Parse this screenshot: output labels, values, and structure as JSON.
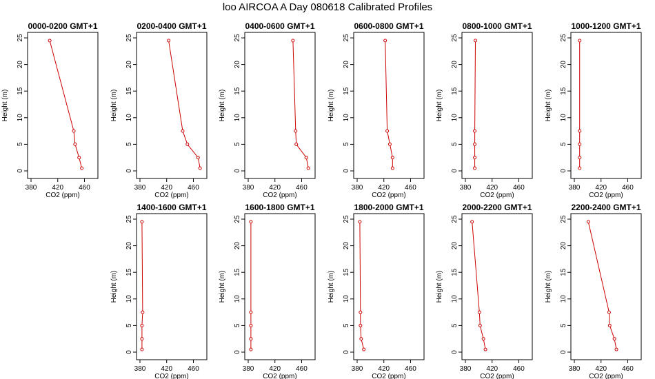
{
  "title": "loo AIRCOA A  Day 080618  Calibrated Profiles",
  "series_color": "#cc0000",
  "chart_data": [
    {
      "type": "line",
      "title": "0000-0200 GMT+1",
      "xlabel": "CO2 (ppm)",
      "ylabel": "Height (m)",
      "xlim": [
        380,
        475
      ],
      "ylim": [
        0,
        25
      ],
      "xticks": [
        380,
        420,
        460
      ],
      "yticks": [
        0,
        5,
        10,
        15,
        20,
        25
      ],
      "x": [
        456,
        452,
        446,
        444,
        408
      ],
      "y": [
        0.5,
        2.5,
        5,
        7.5,
        24.5
      ]
    },
    {
      "type": "line",
      "title": "0200-0400 GMT+1",
      "xlabel": "CO2 (ppm)",
      "ylabel": "Height (m)",
      "xlim": [
        380,
        475
      ],
      "ylim": [
        0,
        25
      ],
      "xticks": [
        380,
        420,
        460
      ],
      "yticks": [
        0,
        5,
        10,
        15,
        20,
        25
      ],
      "x": [
        470,
        467,
        451,
        444,
        423
      ],
      "y": [
        0.5,
        2.5,
        5,
        7.5,
        24.5
      ]
    },
    {
      "type": "line",
      "title": "0400-0600 GMT+1",
      "xlabel": "CO2 (ppm)",
      "ylabel": "Height (m)",
      "xlim": [
        380,
        475
      ],
      "ylim": [
        0,
        25
      ],
      "xticks": [
        380,
        420,
        460
      ],
      "yticks": [
        0,
        5,
        10,
        15,
        20,
        25
      ],
      "x": [
        470,
        467,
        452,
        451,
        447
      ],
      "y": [
        0.5,
        2.5,
        5,
        7.5,
        24.5
      ]
    },
    {
      "type": "line",
      "title": "0600-0800 GMT+1",
      "xlabel": "CO2 (ppm)",
      "ylabel": "Height (m)",
      "xlim": [
        380,
        475
      ],
      "ylim": [
        0,
        25
      ],
      "xticks": [
        380,
        420,
        460
      ],
      "yticks": [
        0,
        5,
        10,
        15,
        20,
        25
      ],
      "x": [
        433,
        433,
        429,
        425,
        422
      ],
      "y": [
        0.5,
        2.5,
        5,
        7.5,
        24.5
      ]
    },
    {
      "type": "line",
      "title": "0800-1000 GMT+1",
      "xlabel": "CO2 (ppm)",
      "ylabel": "Height (m)",
      "xlim": [
        380,
        475
      ],
      "ylim": [
        0,
        25
      ],
      "xticks": [
        380,
        420,
        460
      ],
      "yticks": [
        0,
        5,
        10,
        15,
        20,
        25
      ],
      "x": [
        394,
        394,
        394,
        394,
        395
      ],
      "y": [
        0.5,
        2.5,
        5,
        7.5,
        24.5
      ]
    },
    {
      "type": "line",
      "title": "1000-1200 GMT+1",
      "xlabel": "CO2 (ppm)",
      "ylabel": "Height (m)",
      "xlim": [
        380,
        475
      ],
      "ylim": [
        0,
        25
      ],
      "xticks": [
        380,
        420,
        460
      ],
      "yticks": [
        0,
        5,
        10,
        15,
        20,
        25
      ],
      "x": [
        388,
        388,
        388,
        388,
        388
      ],
      "y": [
        0.5,
        2.5,
        5,
        7.5,
        24.5
      ]
    },
    {
      "type": "line",
      "title": "1400-1600 GMT+1",
      "xlabel": "CO2 (ppm)",
      "ylabel": "Height (m)",
      "xlim": [
        380,
        475
      ],
      "ylim": [
        0,
        25
      ],
      "xticks": [
        380,
        420,
        460
      ],
      "yticks": [
        0,
        5,
        10,
        15,
        20,
        25
      ],
      "x": [
        383,
        383,
        383,
        384,
        383
      ],
      "y": [
        0.5,
        2.5,
        5,
        7.5,
        24.5
      ]
    },
    {
      "type": "line",
      "title": "1600-1800 GMT+1",
      "xlabel": "CO2 (ppm)",
      "ylabel": "Height (m)",
      "xlim": [
        380,
        475
      ],
      "ylim": [
        0,
        25
      ],
      "xticks": [
        380,
        420,
        460
      ],
      "yticks": [
        0,
        5,
        10,
        15,
        20,
        25
      ],
      "x": [
        384,
        384,
        384,
        384,
        384
      ],
      "y": [
        0.5,
        2.5,
        5,
        7.5,
        24.5
      ]
    },
    {
      "type": "line",
      "title": "1800-2000 GMT+1",
      "xlabel": "CO2 (ppm)",
      "ylabel": "Height (m)",
      "xlim": [
        380,
        475
      ],
      "ylim": [
        0,
        25
      ],
      "xticks": [
        380,
        420,
        460
      ],
      "yticks": [
        0,
        5,
        10,
        15,
        20,
        25
      ],
      "x": [
        390,
        386,
        385,
        385,
        384
      ],
      "y": [
        0.5,
        2.5,
        5,
        7.5,
        24.5
      ]
    },
    {
      "type": "line",
      "title": "2000-2200 GMT+1",
      "xlabel": "CO2 (ppm)",
      "ylabel": "Height (m)",
      "xlim": [
        380,
        475
      ],
      "ylim": [
        0,
        25
      ],
      "xticks": [
        380,
        420,
        460
      ],
      "yticks": [
        0,
        5,
        10,
        15,
        20,
        25
      ],
      "x": [
        410,
        407,
        402,
        401,
        390
      ],
      "y": [
        0.5,
        2.5,
        5,
        7.5,
        24.5
      ]
    },
    {
      "type": "line",
      "title": "2200-2400 GMT+1",
      "xlabel": "CO2 (ppm)",
      "ylabel": "Height (m)",
      "xlim": [
        380,
        475
      ],
      "ylim": [
        0,
        25
      ],
      "xticks": [
        380,
        420,
        460
      ],
      "yticks": [
        0,
        5,
        10,
        15,
        20,
        25
      ],
      "x": [
        443,
        440,
        433,
        432,
        401
      ],
      "y": [
        0.5,
        2.5,
        5,
        7.5,
        24.5
      ]
    }
  ]
}
